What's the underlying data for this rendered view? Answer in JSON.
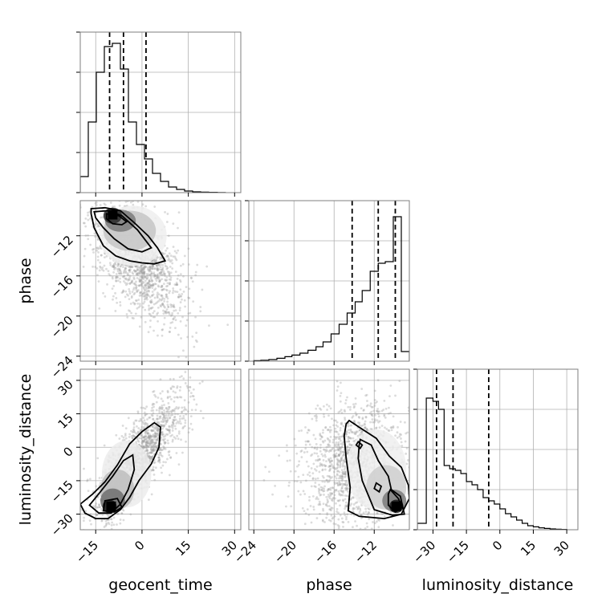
{
  "chart_data": {
    "type": "corner",
    "parameters": [
      "geocent_time",
      "phase",
      "luminosity_distance"
    ],
    "ranges": {
      "geocent_time": [
        -20,
        32
      ],
      "phase": [
        -24.5,
        -8.5
      ],
      "luminosity_distance": [
        -37,
        35
      ]
    },
    "ticks": {
      "geocent_time": {
        "values": [
          -15,
          0,
          15,
          30
        ],
        "labels": [
          "−15",
          "0",
          "15",
          "30"
        ]
      },
      "phase": {
        "values": [
          -24,
          -20,
          -16,
          -12
        ],
        "labels": [
          "−24",
          "−20",
          "−16",
          "−12"
        ]
      },
      "luminosity_distance": {
        "values": [
          -30,
          -15,
          0,
          15,
          30
        ],
        "labels": [
          "−30",
          "−15",
          "0",
          "15",
          "30"
        ]
      }
    },
    "grid": true,
    "histograms": {
      "geocent_time": {
        "edges": [
          -20,
          -17.4,
          -14.8,
          -12.2,
          -9.6,
          -7,
          -4.4,
          -1.8,
          0.8,
          3.4,
          6,
          8.6,
          11.2,
          13.8,
          16.4,
          19,
          21.6,
          24.4,
          27
        ],
        "counts": [
          0.1,
          0.44,
          0.75,
          0.91,
          0.93,
          0.77,
          0.44,
          0.3,
          0.21,
          0.12,
          0.07,
          0.035,
          0.02,
          0.01,
          0.005,
          0.003,
          0.002,
          0.001
        ],
        "quantiles": [
          -10.5,
          -6,
          1.3
        ]
      },
      "phase": {
        "edges": [
          -24,
          -23.3,
          -22.5,
          -21.7,
          -20.9,
          -20.2,
          -19.4,
          -18.6,
          -17.8,
          -17.1,
          -16.3,
          -15.5,
          -14.7,
          -13.9,
          -13.2,
          -12.4,
          -11.6,
          -10.9,
          -10.1,
          -9.3,
          -8.5
        ],
        "counts": [
          0.003,
          0.006,
          0.01,
          0.018,
          0.028,
          0.038,
          0.05,
          0.068,
          0.09,
          0.12,
          0.17,
          0.23,
          0.3,
          0.37,
          0.44,
          0.56,
          0.61,
          0.62,
          0.9,
          0.06
        ],
        "quantiles": [
          -14.2,
          -11.6,
          -9.9
        ]
      },
      "luminosity_distance": {
        "edges": [
          -37,
          -33,
          -30,
          -27.5,
          -25,
          -22.5,
          -20,
          -17.5,
          -15,
          -12.5,
          -10,
          -7.5,
          -5,
          -2.5,
          0,
          2.5,
          5,
          7.5,
          10,
          12.5,
          15,
          17.5,
          20,
          22.5,
          25,
          27.5,
          30
        ],
        "counts": [
          0.04,
          0.82,
          0.8,
          0.75,
          0.4,
          0.38,
          0.37,
          0.35,
          0.3,
          0.28,
          0.25,
          0.2,
          0.18,
          0.16,
          0.13,
          0.1,
          0.08,
          0.06,
          0.04,
          0.025,
          0.018,
          0.012,
          0.008,
          0.005,
          0.003,
          0.002
        ],
        "quantiles": [
          -28.4,
          -21,
          -5
        ]
      }
    },
    "contours": {
      "geocent_time|phase": {
        "levels": [
          [
            [
              -16.5,
              -9.3
            ],
            [
              -12,
              -9.2
            ],
            [
              -7,
              -9.5
            ],
            [
              -2.5,
              -10.7
            ],
            [
              2,
              -12
            ],
            [
              5,
              -13.2
            ],
            [
              7.5,
              -14.5
            ],
            [
              4,
              -14.8
            ],
            [
              0,
              -14.7
            ],
            [
              -4,
              -14.5
            ],
            [
              -8.5,
              -14
            ],
            [
              -12.5,
              -13
            ],
            [
              -15.5,
              -11.2
            ],
            [
              -16.5,
              -9.8
            ]
          ],
          [
            [
              -15.5,
              -9.6
            ],
            [
              -11,
              -9.5
            ],
            [
              -6.5,
              -10
            ],
            [
              -1.5,
              -11.4
            ],
            [
              3,
              -13.2
            ],
            [
              0,
              -13.6
            ],
            [
              -4.5,
              -13.3
            ],
            [
              -9,
              -12.3
            ],
            [
              -12.5,
              -11.2
            ],
            [
              -15,
              -10.2
            ]
          ],
          [
            [
              -11.5,
              -9.8
            ],
            [
              -7.5,
              -10
            ],
            [
              -5,
              -10.6
            ],
            [
              -6.5,
              -10.9
            ],
            [
              -9.5,
              -10.8
            ],
            [
              -11.5,
              -10.3
            ]
          ]
        ],
        "peak": [
          -9.5,
          -9.9
        ],
        "density_ellipses": [
          {
            "cx": -9.5,
            "cy": -10.0,
            "rx": 3.0,
            "ry": 0.8,
            "shade": "#2a2a2a"
          },
          {
            "cx": -7.0,
            "cy": -10.5,
            "rx": 5.0,
            "ry": 1.1,
            "shade": "#7a7a7a"
          },
          {
            "cx": -4.0,
            "cy": -11.5,
            "rx": 8.5,
            "ry": 2.0,
            "shade": "#c5c5c5"
          },
          {
            "cx": -3.0,
            "cy": -12.0,
            "rx": 11.0,
            "ry": 3.0,
            "shade": "#eeeeee"
          }
        ],
        "scatter": {
          "center": [
            -1.5,
            -14.5
          ],
          "spread": [
            7.5,
            3.0
          ],
          "correlation": -0.55,
          "count": 1500
        }
      },
      "geocent_time|luminosity_distance": {
        "levels": [
          [
            [
              -20,
              -25.5
            ],
            [
              -16,
              -21
            ],
            [
              -12,
              -15.5
            ],
            [
              -8,
              -8
            ],
            [
              -4,
              1.5
            ],
            [
              0,
              7
            ],
            [
              4,
              11
            ],
            [
              6,
              9
            ],
            [
              5.5,
              0
            ],
            [
              3,
              -7.5
            ],
            [
              -1,
              -15
            ],
            [
              -4,
              -22.5
            ],
            [
              -7,
              -28
            ],
            [
              -11,
              -32
            ],
            [
              -15,
              -32
            ],
            [
              -18.5,
              -29.5
            ]
          ],
          [
            [
              -17,
              -26
            ],
            [
              -13.5,
              -20
            ],
            [
              -9.5,
              -13
            ],
            [
              -6,
              -6
            ],
            [
              -3,
              -3.5
            ],
            [
              -2.5,
              -10
            ],
            [
              -4.5,
              -19
            ],
            [
              -7,
              -25.5
            ],
            [
              -10,
              -29.5
            ],
            [
              -14,
              -29.5
            ]
          ],
          [
            [
              -12,
              -24
            ],
            [
              -8,
              -23
            ],
            [
              -6.5,
              -27
            ],
            [
              -9,
              -29
            ],
            [
              -12.5,
              -28.5
            ]
          ]
        ],
        "peak": [
          -10,
          -26.5
        ],
        "density_ellipses": [
          {
            "cx": -10.5,
            "cy": -26.5,
            "rx": 2.3,
            "ry": 3.0,
            "shade": "#1e1e1e"
          },
          {
            "cx": -9.5,
            "cy": -24.0,
            "rx": 4.0,
            "ry": 5.5,
            "shade": "#6e6e6e"
          },
          {
            "cx": -8.0,
            "cy": -19.0,
            "rx": 5.5,
            "ry": 9.0,
            "shade": "#bdbdbd"
          },
          {
            "cx": -5.0,
            "cy": -12.0,
            "rx": 8.0,
            "ry": 15.0,
            "shade": "#ececec"
          }
        ],
        "scatter": {
          "center": [
            -1,
            -5
          ],
          "spread": [
            7.5,
            14
          ],
          "correlation": 0.82,
          "count": 1500
        }
      },
      "phase|luminosity_distance": {
        "levels": [
          [
            [
              -14.5,
              12
            ],
            [
              -13.5,
              9
            ],
            [
              -11.8,
              4
            ],
            [
              -10.5,
              -4
            ],
            [
              -9.3,
              -9
            ],
            [
              -8.6,
              -17
            ],
            [
              -8.5,
              -23
            ],
            [
              -9.3,
              -30
            ],
            [
              -11,
              -32
            ],
            [
              -13.5,
              -31
            ],
            [
              -14.6,
              -28.5
            ],
            [
              -14.4,
              -18
            ],
            [
              -14.8,
              -5
            ],
            [
              -15,
              5
            ],
            [
              -14.8,
              10.5
            ]
          ],
          [
            [
              -13.4,
              3.5
            ],
            [
              -12.3,
              1
            ],
            [
              -11.6,
              -6
            ],
            [
              -10.6,
              -13
            ],
            [
              -10.3,
              -19
            ],
            [
              -9.4,
              -22
            ],
            [
              -9,
              -30
            ],
            [
              -10.2,
              -30.5
            ],
            [
              -12,
              -28
            ],
            [
              -13.2,
              -15
            ],
            [
              -13.6,
              -5
            ],
            [
              -13.5,
              1
            ]
          ],
          [
            [
              -10.4,
              -19
            ],
            [
              -9.6,
              -23
            ],
            [
              -9.2,
              -27
            ],
            [
              -9.9,
              -29
            ],
            [
              -10.6,
              -26
            ],
            [
              -10.6,
              -21
            ]
          ],
          [
            [
              -11.8,
              -16
            ],
            [
              -11.3,
              -17.5
            ],
            [
              -11.5,
              -20
            ],
            [
              -12,
              -18.5
            ]
          ],
          [
            [
              -13.6,
              2.5
            ],
            [
              -13.2,
              1
            ],
            [
              -13.4,
              -0.5
            ],
            [
              -13.8,
              1
            ]
          ]
        ],
        "peak": [
          -9.8,
          -26.5
        ],
        "density_ellipses": [
          {
            "cx": -9.8,
            "cy": -26.5,
            "rx": 0.7,
            "ry": 3.0,
            "shade": "#1a1a1a"
          },
          {
            "cx": -10.0,
            "cy": -24.0,
            "rx": 1.2,
            "ry": 5.0,
            "shade": "#7a7a7a"
          },
          {
            "cx": -10.8,
            "cy": -18.0,
            "rx": 2.0,
            "ry": 10.0,
            "shade": "#cfcfcf"
          },
          {
            "cx": -11.8,
            "cy": -10.0,
            "rx": 3.0,
            "ry": 18.0,
            "shade": "#efefef"
          }
        ],
        "scatter": {
          "center": [
            -14,
            -8
          ],
          "spread": [
            2.5,
            14
          ],
          "correlation": 0.1,
          "count": 1500
        }
      }
    }
  }
}
